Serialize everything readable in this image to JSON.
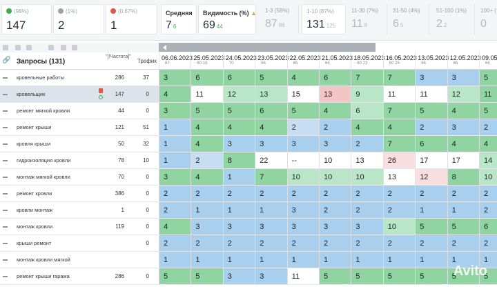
{
  "summary": [
    {
      "label": "(98%)",
      "value": "147",
      "icon": "up-arrow-icon",
      "color": "#3fae49"
    },
    {
      "label": "(1%)",
      "value": "2",
      "icon": "neutral-icon",
      "color": "#9aa3ab"
    },
    {
      "label": "(0.67%)",
      "value": "1",
      "icon": "down-arrow-icon",
      "color": "#e2564e"
    }
  ],
  "avg": {
    "label": "Средняя",
    "value": "7",
    "delta": "6"
  },
  "visibility": {
    "label": "Видимость (%)",
    "value": "69",
    "delta": "44"
  },
  "ranges": [
    {
      "label": "1-3",
      "pct": "(58%)",
      "value": "87",
      "delta": "86"
    },
    {
      "label": "1-10",
      "pct": "(87%)",
      "value": "131",
      "delta": "125"
    },
    {
      "label": "11-30",
      "pct": "(7%)",
      "value": "11",
      "delta": "8"
    },
    {
      "label": "31-50",
      "pct": "(4%)",
      "value": "6",
      "delta": "5"
    },
    {
      "label": "51-100",
      "pct": "(1%)",
      "value": "2",
      "delta": "2"
    },
    {
      "label": "100+",
      "pct": "(",
      "value": "0",
      "delta": ""
    }
  ],
  "table": {
    "queries_label": "Запросы (131)",
    "freq_label": "\"[!Частота]\"",
    "traffic_label": "Трафик",
    "dates": [
      {
        "d": "06.06.2023",
        "s": "87"
      },
      {
        "d": "25.05.2023",
        "s": "60 16"
      },
      {
        "d": "24.05.2023",
        "s": "70"
      },
      {
        "d": "23.05.2023",
        "s": "65"
      },
      {
        "d": "22.05.2023",
        "s": "65"
      },
      {
        "d": "21.05.2023",
        "s": "65"
      },
      {
        "d": "18.05.2023",
        "s": "60 23"
      },
      {
        "d": "16.05.2023",
        "s": "60 25"
      },
      {
        "d": "13.05.2023",
        "s": "65"
      },
      {
        "d": "12.05.2023",
        "s": "65"
      },
      {
        "d": "09.05.2",
        "s": "65"
      }
    ],
    "rows": [
      {
        "q": "кровельные работы",
        "f": "286",
        "t": "37",
        "c": [
          [
            "3",
            "g"
          ],
          [
            "6",
            "g"
          ],
          [
            "6",
            "g"
          ],
          [
            "5",
            "g"
          ],
          [
            "4",
            "g"
          ],
          [
            "6",
            "g"
          ],
          [
            "7",
            "g"
          ],
          [
            "7",
            "g"
          ],
          [
            "3",
            "b"
          ],
          [
            "3",
            "b"
          ],
          [
            "5",
            "g"
          ]
        ]
      },
      {
        "q": "кровельщик",
        "f": "147",
        "t": "0",
        "c": [
          [
            "4",
            "g"
          ],
          [
            "11",
            "w"
          ],
          [
            "12",
            "lg"
          ],
          [
            "13",
            "lg"
          ],
          [
            "15",
            "w"
          ],
          [
            "13",
            "r"
          ],
          [
            "9",
            "lg"
          ],
          [
            "11",
            "w"
          ],
          [
            "11",
            "w"
          ],
          [
            "12",
            "lg"
          ],
          [
            "11",
            "g"
          ]
        ]
      },
      {
        "q": "ремонт мягкой кровли",
        "f": "44",
        "t": "0",
        "c": [
          [
            "3",
            "g"
          ],
          [
            "5",
            "g"
          ],
          [
            "5",
            "g"
          ],
          [
            "6",
            "g"
          ],
          [
            "5",
            "g"
          ],
          [
            "4",
            "g"
          ],
          [
            "6",
            "lg"
          ],
          [
            "7",
            "g"
          ],
          [
            "5",
            "g"
          ],
          [
            "4",
            "g"
          ],
          [
            "5",
            "g"
          ]
        ]
      },
      {
        "q": "ремонт крыши",
        "f": "121",
        "t": "51",
        "c": [
          [
            "1",
            "b"
          ],
          [
            "4",
            "g"
          ],
          [
            "4",
            "g"
          ],
          [
            "4",
            "g"
          ],
          [
            "2",
            "lb"
          ],
          [
            "2",
            "b"
          ],
          [
            "4",
            "g"
          ],
          [
            "4",
            "g"
          ],
          [
            "2",
            "b"
          ],
          [
            "3",
            "b"
          ],
          [
            "2",
            "b"
          ]
        ]
      },
      {
        "q": "кровля крыши",
        "f": "50",
        "t": "32",
        "c": [
          [
            "1",
            "b"
          ],
          [
            "4",
            "g"
          ],
          [
            "3",
            "b"
          ],
          [
            "3",
            "b"
          ],
          [
            "3",
            "b"
          ],
          [
            "3",
            "b"
          ],
          [
            "2",
            "b"
          ],
          [
            "7",
            "g"
          ],
          [
            "6",
            "g"
          ],
          [
            "4",
            "g"
          ],
          [
            "4",
            "g"
          ]
        ]
      },
      {
        "q": "гидроизоляция кровли",
        "f": "78",
        "t": "10",
        "c": [
          [
            "1",
            "b"
          ],
          [
            "2",
            "lb"
          ],
          [
            "8",
            "g"
          ],
          [
            "22",
            "w"
          ],
          [
            "--",
            "w"
          ],
          [
            "10",
            "w"
          ],
          [
            "13",
            "w"
          ],
          [
            "26",
            "lr"
          ],
          [
            "17",
            "w"
          ],
          [
            "17",
            "w"
          ],
          [
            "14",
            "lg"
          ]
        ]
      },
      {
        "q": "монтаж мягкой кровли",
        "f": "70",
        "t": "0",
        "c": [
          [
            "3",
            "g"
          ],
          [
            "4",
            "g"
          ],
          [
            "1",
            "b"
          ],
          [
            "7",
            "g"
          ],
          [
            "10",
            "lg"
          ],
          [
            "10",
            "lg"
          ],
          [
            "10",
            "lg"
          ],
          [
            "13",
            "w"
          ],
          [
            "12",
            "lr"
          ],
          [
            "8",
            "g"
          ],
          [
            "10",
            "lg"
          ]
        ]
      },
      {
        "q": "ремонт кровли",
        "f": "386",
        "t": "0",
        "c": [
          [
            "2",
            "b"
          ],
          [
            "2",
            "b"
          ],
          [
            "2",
            "b"
          ],
          [
            "2",
            "b"
          ],
          [
            "2",
            "b"
          ],
          [
            "2",
            "b"
          ],
          [
            "2",
            "b"
          ],
          [
            "2",
            "b"
          ],
          [
            "2",
            "b"
          ],
          [
            "2",
            "b"
          ],
          [
            "2",
            "b"
          ]
        ]
      },
      {
        "q": "кровли монтаж",
        "f": "1",
        "t": "0",
        "c": [
          [
            "2",
            "b"
          ],
          [
            "1",
            "b"
          ],
          [
            "1",
            "b"
          ],
          [
            "1",
            "b"
          ],
          [
            "3",
            "b"
          ],
          [
            "2",
            "b"
          ],
          [
            "2",
            "b"
          ],
          [
            "2",
            "b"
          ],
          [
            "1",
            "b"
          ],
          [
            "1",
            "b"
          ],
          [
            "2",
            "b"
          ]
        ]
      },
      {
        "q": "монтаж кровли",
        "f": "119",
        "t": "0",
        "c": [
          [
            "4",
            "g"
          ],
          [
            "3",
            "b"
          ],
          [
            "3",
            "b"
          ],
          [
            "3",
            "b"
          ],
          [
            "3",
            "b"
          ],
          [
            "3",
            "b"
          ],
          [
            "3",
            "b"
          ],
          [
            "10",
            "lg"
          ],
          [
            "5",
            "g"
          ],
          [
            "5",
            "g"
          ],
          [
            "6",
            "g"
          ]
        ]
      },
      {
        "q": "крыши ремонт",
        "f": "",
        "t": "0",
        "c": [
          [
            "2",
            "b"
          ],
          [
            "2",
            "b"
          ],
          [
            "2",
            "b"
          ],
          [
            "2",
            "b"
          ],
          [
            "2",
            "b"
          ],
          [
            "2",
            "b"
          ],
          [
            "2",
            "b"
          ],
          [
            "2",
            "b"
          ],
          [
            "2",
            "b"
          ],
          [
            "2",
            "b"
          ],
          [
            "2",
            "b"
          ]
        ]
      },
      {
        "q": "монтаж кровли мягкой",
        "f": "",
        "t": "",
        "c": [
          [
            "1",
            "b"
          ],
          [
            "1",
            "b"
          ],
          [
            "1",
            "b"
          ],
          [
            "1",
            "b"
          ],
          [
            "1",
            "b"
          ],
          [
            "1",
            "b"
          ],
          [
            "1",
            "b"
          ],
          [
            "1",
            "b"
          ],
          [
            "1",
            "b"
          ],
          [
            "1",
            "b"
          ],
          [
            "1",
            "b"
          ]
        ]
      },
      {
        "q": "ремонт крыши гаража",
        "f": "286",
        "t": "0",
        "c": [
          [
            "5",
            "g"
          ],
          [
            "5",
            "g"
          ],
          [
            "3",
            "b"
          ],
          [
            "3",
            "b"
          ],
          [
            "11",
            "w"
          ],
          [
            "5",
            "g"
          ],
          [
            "5",
            "g"
          ],
          [
            "5",
            "g"
          ],
          [
            "5",
            "g"
          ],
          [
            "5",
            "g"
          ],
          [
            "5",
            "g"
          ]
        ]
      }
    ]
  },
  "watermark": "Avito"
}
